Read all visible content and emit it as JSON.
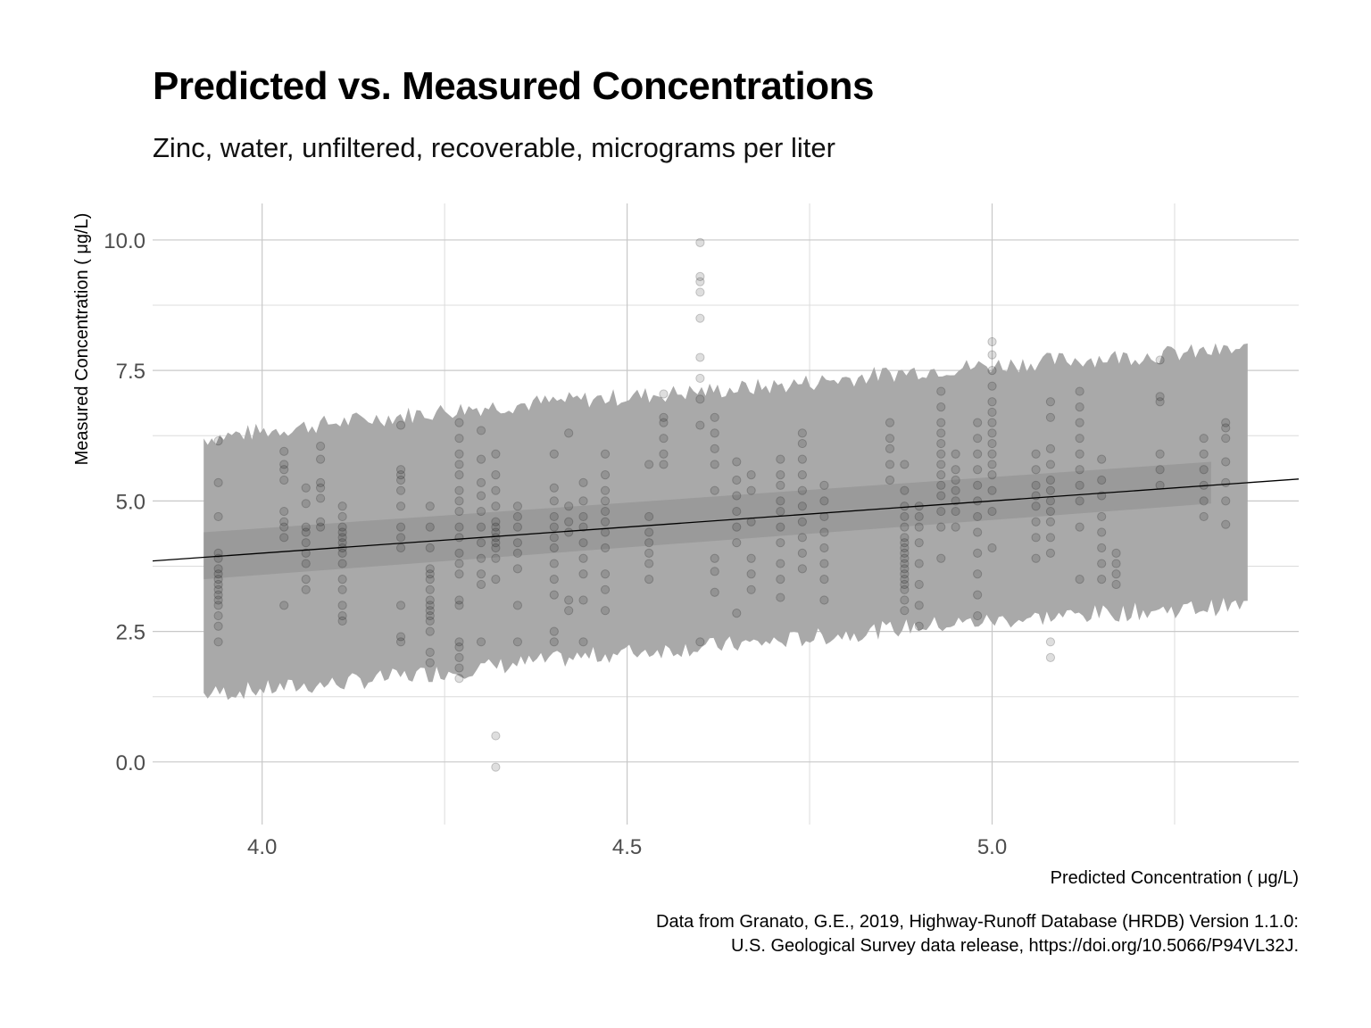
{
  "chart_data": {
    "type": "scatter",
    "title": "Predicted vs. Measured Concentrations",
    "subtitle": "Zinc, water, unfiltered, recoverable, micrograms per liter",
    "xlabel": "Predicted Concentration ( μg/L)",
    "ylabel": "Measured Concentration ( μg/L)",
    "xlim": [
      3.85,
      5.42
    ],
    "ylim": [
      -1.2,
      10.7
    ],
    "x_ticks": [
      "4.0",
      "4.5",
      "5.0"
    ],
    "y_ticks": [
      "0.0",
      "2.5",
      "5.0",
      "7.5",
      "10.0"
    ],
    "grid": true,
    "caption": [
      "Data from Granato, G.E., 2019, Highway-Runoff Database (HRDB) Version 1.1.0:",
      "U.S. Geological Survey data release, https://doi.org/10.5066/P94VL32J."
    ],
    "fit_line": {
      "x": [
        3.85,
        5.42
      ],
      "y": [
        3.85,
        5.42
      ]
    },
    "confidence_band": {
      "x": [
        3.92,
        5.3
      ],
      "lower": [
        3.5,
        4.95
      ],
      "upper": [
        4.4,
        5.75
      ]
    },
    "prediction_band": {
      "x": [
        3.92,
        4.1,
        4.3,
        4.5,
        4.7,
        4.9,
        5.1,
        5.35
      ],
      "lower": [
        1.3,
        1.5,
        1.8,
        2.1,
        2.3,
        2.6,
        2.8,
        3.0
      ],
      "upper": [
        6.2,
        6.5,
        6.8,
        7.0,
        7.2,
        7.5,
        7.7,
        7.9
      ]
    },
    "series": [
      {
        "clusters": [
          {
            "x": 3.94,
            "y": [
              2.3,
              2.6,
              2.8,
              3.0,
              3.1,
              3.2,
              3.3,
              3.4,
              3.5,
              3.6,
              3.7,
              3.9,
              4.0,
              4.7,
              5.35,
              6.15
            ]
          },
          {
            "x": 4.03,
            "y": [
              3.0,
              4.3,
              4.5,
              4.6,
              4.8,
              5.4,
              5.6,
              5.7,
              5.95
            ]
          },
          {
            "x": 4.06,
            "y": [
              3.3,
              3.5,
              3.8,
              4.0,
              4.2,
              4.4,
              4.5,
              4.95,
              5.25
            ]
          },
          {
            "x": 4.08,
            "y": [
              4.5,
              4.6,
              5.05,
              5.25,
              5.35,
              5.8,
              6.05
            ]
          },
          {
            "x": 4.11,
            "y": [
              2.7,
              2.8,
              3.0,
              3.3,
              3.5,
              3.8,
              4.0,
              4.1,
              4.2,
              4.3,
              4.4,
              4.5,
              4.7,
              4.9
            ]
          },
          {
            "x": 4.19,
            "y": [
              2.3,
              2.4,
              3.0,
              4.1,
              4.3,
              4.5,
              4.9,
              5.2,
              5.4,
              5.5,
              5.6,
              6.45
            ]
          },
          {
            "x": 4.23,
            "y": [
              1.9,
              2.1,
              2.5,
              2.7,
              2.8,
              2.9,
              3.0,
              3.1,
              3.3,
              3.5,
              3.6,
              3.7,
              4.1,
              4.5,
              4.9
            ]
          },
          {
            "x": 4.27,
            "y": [
              1.6,
              1.8,
              2.0,
              2.2,
              2.3,
              3.0,
              3.1,
              3.6,
              3.8,
              4.0,
              4.3,
              4.5,
              4.8,
              5.0,
              5.2,
              5.5,
              5.7,
              5.9,
              6.2,
              6.5
            ]
          },
          {
            "x": 4.3,
            "y": [
              2.3,
              3.4,
              3.6,
              3.9,
              4.2,
              4.5,
              4.8,
              5.1,
              5.35,
              5.8,
              6.35
            ]
          },
          {
            "x": 4.32,
            "y": [
              -0.1,
              0.5,
              3.5,
              3.9,
              4.1,
              4.2,
              4.3,
              4.4,
              4.5,
              4.6,
              4.9,
              5.2,
              5.5,
              5.9
            ]
          },
          {
            "x": 4.35,
            "y": [
              2.3,
              3.0,
              3.7,
              4.0,
              4.2,
              4.5,
              4.7,
              4.9
            ]
          },
          {
            "x": 4.4,
            "y": [
              2.3,
              2.5,
              3.2,
              3.5,
              3.8,
              4.1,
              4.3,
              4.5,
              4.7,
              5.0,
              5.25,
              5.9
            ]
          },
          {
            "x": 4.42,
            "y": [
              2.9,
              3.1,
              4.4,
              4.6,
              4.9,
              6.3
            ]
          },
          {
            "x": 4.44,
            "y": [
              2.3,
              3.1,
              3.6,
              3.9,
              4.2,
              4.5,
              4.7,
              5.0,
              5.35
            ]
          },
          {
            "x": 4.47,
            "y": [
              2.9,
              3.3,
              3.6,
              4.1,
              4.4,
              4.6,
              4.8,
              5.0,
              5.2,
              5.5,
              5.9
            ]
          },
          {
            "x": 4.53,
            "y": [
              3.5,
              3.8,
              4.0,
              4.2,
              4.4,
              4.7,
              5.7
            ]
          },
          {
            "x": 4.55,
            "y": [
              5.7,
              5.9,
              6.2,
              6.5,
              6.6,
              7.05
            ]
          },
          {
            "x": 4.6,
            "y": [
              2.3,
              6.45,
              6.95,
              7.35,
              7.75,
              8.5,
              9.0,
              9.2,
              9.3,
              9.95
            ]
          },
          {
            "x": 4.62,
            "y": [
              3.25,
              3.65,
              3.9,
              5.2,
              5.7,
              6.0,
              6.3,
              6.6
            ]
          },
          {
            "x": 4.65,
            "y": [
              2.85,
              4.2,
              4.5,
              4.8,
              5.1,
              5.4,
              5.75
            ]
          },
          {
            "x": 4.67,
            "y": [
              3.3,
              3.6,
              3.9,
              4.6,
              5.2,
              5.5
            ]
          },
          {
            "x": 4.71,
            "y": [
              3.15,
              3.5,
              3.8,
              4.2,
              4.5,
              4.8,
              5.0,
              5.3,
              5.5,
              5.8
            ]
          },
          {
            "x": 4.74,
            "y": [
              3.7,
              4.0,
              4.3,
              4.6,
              4.9,
              5.2,
              5.5,
              5.8,
              6.1,
              6.3
            ]
          },
          {
            "x": 4.77,
            "y": [
              3.1,
              3.5,
              3.8,
              4.1,
              4.4,
              4.7,
              5.0,
              5.3
            ]
          },
          {
            "x": 4.86,
            "y": [
              5.4,
              5.7,
              6.0,
              6.2,
              6.5
            ]
          },
          {
            "x": 4.88,
            "y": [
              2.9,
              3.1,
              3.3,
              3.4,
              3.5,
              3.6,
              3.7,
              3.8,
              3.9,
              4.0,
              4.1,
              4.2,
              4.3,
              4.5,
              4.7,
              4.9,
              5.2,
              5.7
            ]
          },
          {
            "x": 4.9,
            "y": [
              2.6,
              3.0,
              3.4,
              3.8,
              4.2,
              4.5,
              4.7,
              4.9
            ]
          },
          {
            "x": 4.93,
            "y": [
              3.9,
              4.5,
              4.8,
              5.1,
              5.3,
              5.5,
              5.7,
              5.9,
              6.1,
              6.3,
              6.5,
              6.8,
              7.1
            ]
          },
          {
            "x": 4.95,
            "y": [
              4.5,
              4.8,
              5.0,
              5.2,
              5.4,
              5.6,
              5.9
            ]
          },
          {
            "x": 4.98,
            "y": [
              2.8,
              3.2,
              3.6,
              4.0,
              4.4,
              4.7,
              5.0,
              5.3,
              5.6,
              5.9,
              6.2,
              6.5
            ]
          },
          {
            "x": 5.0,
            "y": [
              4.1,
              4.8,
              5.2,
              5.5,
              5.7,
              5.9,
              6.1,
              6.3,
              6.5,
              6.7,
              6.9,
              7.2,
              7.5,
              7.8,
              8.05
            ]
          },
          {
            "x": 5.06,
            "y": [
              3.9,
              4.3,
              4.6,
              4.9,
              5.1,
              5.3,
              5.6,
              5.9
            ]
          },
          {
            "x": 5.08,
            "y": [
              2.0,
              2.3,
              4.0,
              4.3,
              4.6,
              4.8,
              5.0,
              5.2,
              5.4,
              5.7,
              6.0,
              6.6,
              6.9
            ]
          },
          {
            "x": 5.12,
            "y": [
              3.5,
              4.5,
              5.0,
              5.3,
              5.6,
              5.9,
              6.2,
              6.5,
              6.8,
              7.1
            ]
          },
          {
            "x": 5.15,
            "y": [
              3.5,
              3.8,
              4.1,
              4.4,
              4.7,
              5.1,
              5.4,
              5.8
            ]
          },
          {
            "x": 5.17,
            "y": [
              3.4,
              3.6,
              3.8,
              4.0
            ]
          },
          {
            "x": 5.23,
            "y": [
              5.3,
              5.6,
              5.9,
              6.9,
              7.0,
              7.7
            ]
          },
          {
            "x": 5.29,
            "y": [
              4.7,
              5.0,
              5.3,
              5.6,
              5.9,
              6.2
            ]
          },
          {
            "x": 5.32,
            "y": [
              4.55,
              5.0,
              5.35,
              5.75,
              6.2,
              6.4,
              6.5
            ]
          }
        ]
      }
    ]
  }
}
